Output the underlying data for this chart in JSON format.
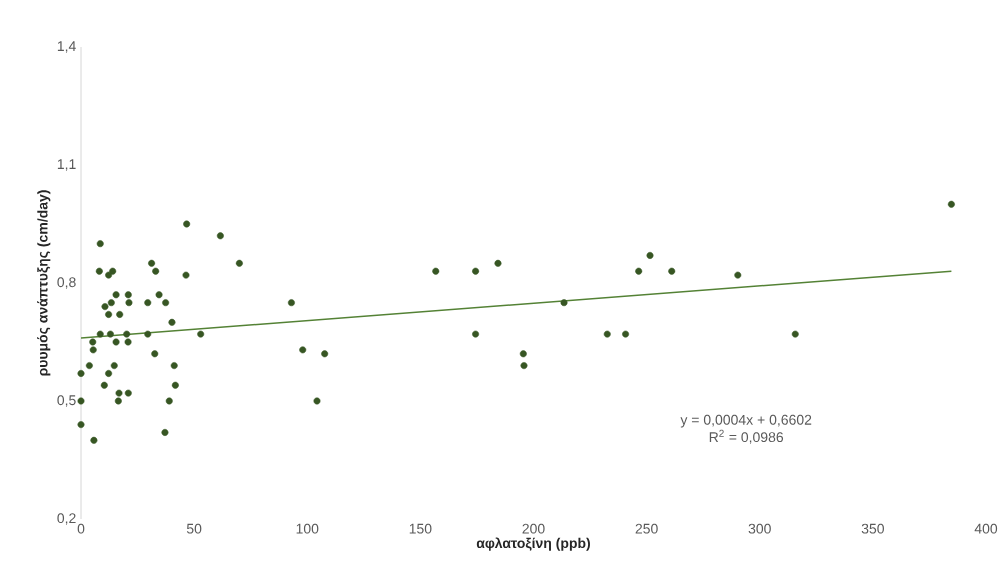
{
  "chart_data": {
    "type": "scatter",
    "xlabel": "αφλατοξίνη (ppb)",
    "ylabel": "ρυυμός ανάπτυξης (cm/day)",
    "xlim": [
      0,
      400
    ],
    "xticks": [
      0,
      50,
      100,
      150,
      200,
      250,
      300,
      350,
      400
    ],
    "ylim": [
      0.2,
      1.4
    ],
    "yticks": [
      {
        "value": 0.2,
        "label": "0,2"
      },
      {
        "value": 0.5,
        "label": "0,5"
      },
      {
        "value": 0.8,
        "label": "0,8"
      },
      {
        "value": 1.1,
        "label": "1,1"
      },
      {
        "value": 1.4,
        "label": "1,4"
      }
    ],
    "grid": false,
    "marker": "circle",
    "series": [
      {
        "color": "#375623",
        "x": [
          46.7,
          61.6,
          8.5,
          70,
          31.2,
          33,
          8.1,
          14,
          12.2,
          46.4,
          15.5,
          20.9,
          21.2,
          13.4,
          29.5,
          34.5,
          37.4,
          10.6,
          12.2,
          17.1,
          40.2,
          8.5,
          13,
          20.2,
          29.5,
          52.9,
          5.2,
          15.5,
          20.8,
          5.4,
          32.6,
          3.7,
          14.7,
          41.2,
          0,
          12.2,
          10.3,
          41.7,
          16.8,
          20.9,
          0,
          16.5,
          39,
          0,
          37.1,
          5.7,
          93,
          156.8,
          174.4,
          184.3,
          213.5,
          98,
          107.7,
          104.3,
          174.4,
          195.5,
          195.8,
          232.6,
          240.7,
          246.5,
          251.5,
          261.1,
          290.3,
          315.7,
          384.7
        ],
        "values": [
          0.95,
          0.92,
          0.9,
          0.85,
          0.85,
          0.83,
          0.83,
          0.83,
          0.82,
          0.82,
          0.77,
          0.77,
          0.75,
          0.75,
          0.75,
          0.77,
          0.75,
          0.74,
          0.72,
          0.72,
          0.7,
          0.67,
          0.67,
          0.67,
          0.67,
          0.67,
          0.65,
          0.65,
          0.65,
          0.63,
          0.62,
          0.59,
          0.59,
          0.59,
          0.57,
          0.57,
          0.54,
          0.54,
          0.52,
          0.52,
          0.5,
          0.5,
          0.5,
          0.44,
          0.42,
          0.4,
          0.75,
          0.83,
          0.83,
          0.85,
          0.75,
          0.63,
          0.62,
          0.5,
          0.67,
          0.62,
          0.59,
          0.67,
          0.67,
          0.83,
          0.87,
          0.83,
          0.82,
          0.67,
          1.0
        ]
      },
      {
        "type": "line",
        "color": "#548235",
        "marker": "none",
        "x": [
          0,
          384.7
        ],
        "values": [
          0.66,
          0.83
        ]
      }
    ],
    "annotations": [
      "y = 0,0004x + 0,6602",
      "R$^{2}$ = 0,0986"
    ]
  }
}
